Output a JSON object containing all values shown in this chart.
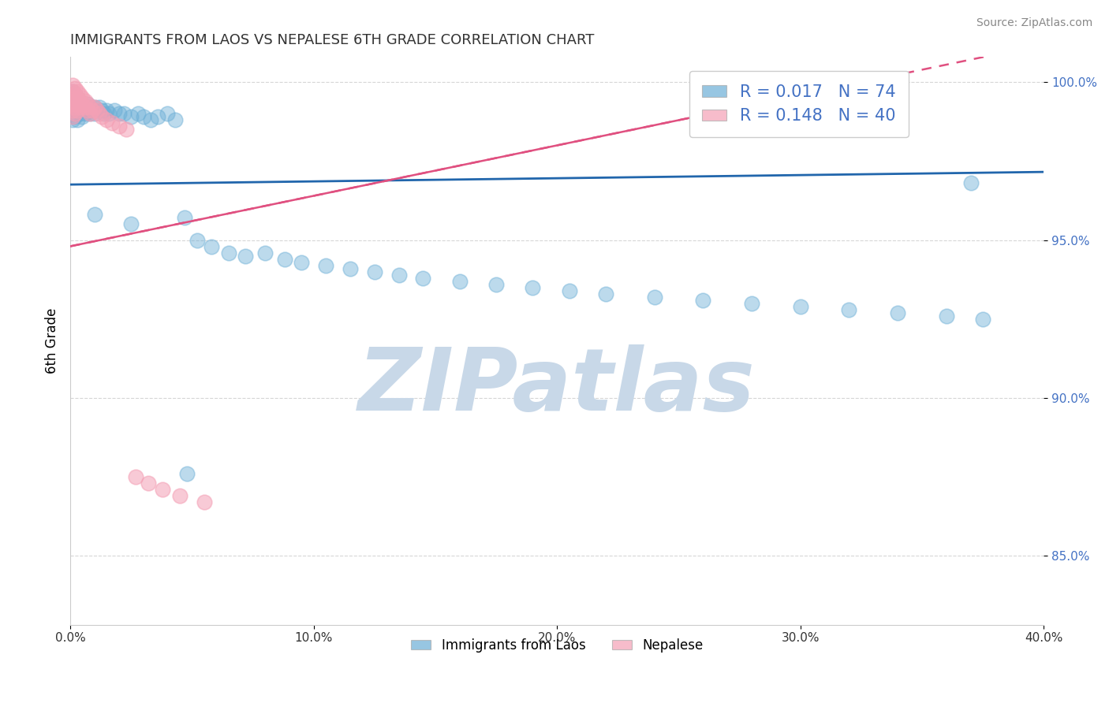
{
  "title": "IMMIGRANTS FROM LAOS VS NEPALESE 6TH GRADE CORRELATION CHART",
  "source_text": "Source: ZipAtlas.com",
  "xlabel_legend_1": "Immigrants from Laos",
  "xlabel_legend_2": "Nepalese",
  "ylabel": "6th Grade",
  "r1": 0.017,
  "n1": 74,
  "r2": 0.148,
  "n2": 40,
  "color1": "#6baed6",
  "color2": "#f4a0b5",
  "trendline1_color": "#2166ac",
  "trendline2_color": "#e05080",
  "xlim": [
    0.0,
    0.4
  ],
  "ylim": [
    0.828,
    1.008
  ],
  "watermark": "ZIPatlas",
  "watermark_color": "#c8d8e8",
  "background_color": "#ffffff",
  "blue_x": [
    0.001,
    0.001,
    0.001,
    0.001,
    0.001,
    0.002,
    0.002,
    0.002,
    0.002,
    0.003,
    0.003,
    0.003,
    0.003,
    0.004,
    0.004,
    0.004,
    0.005,
    0.005,
    0.005,
    0.006,
    0.006,
    0.007,
    0.007,
    0.008,
    0.008,
    0.009,
    0.01,
    0.01,
    0.011,
    0.012,
    0.013,
    0.014,
    0.015,
    0.016,
    0.018,
    0.02,
    0.022,
    0.025,
    0.028,
    0.03,
    0.033,
    0.036,
    0.04,
    0.043,
    0.047,
    0.052,
    0.058,
    0.065,
    0.072,
    0.08,
    0.088,
    0.095,
    0.105,
    0.115,
    0.125,
    0.135,
    0.145,
    0.16,
    0.175,
    0.19,
    0.205,
    0.22,
    0.24,
    0.26,
    0.28,
    0.3,
    0.32,
    0.34,
    0.36,
    0.375,
    0.01,
    0.025,
    0.048,
    0.37
  ],
  "blue_y": [
    0.997,
    0.995,
    0.993,
    0.99,
    0.988,
    0.996,
    0.994,
    0.992,
    0.989,
    0.995,
    0.993,
    0.991,
    0.988,
    0.994,
    0.992,
    0.99,
    0.993,
    0.991,
    0.989,
    0.992,
    0.99,
    0.993,
    0.991,
    0.992,
    0.99,
    0.991,
    0.992,
    0.99,
    0.991,
    0.992,
    0.991,
    0.99,
    0.991,
    0.99,
    0.991,
    0.99,
    0.99,
    0.989,
    0.99,
    0.989,
    0.988,
    0.989,
    0.99,
    0.988,
    0.957,
    0.95,
    0.948,
    0.946,
    0.945,
    0.946,
    0.944,
    0.943,
    0.942,
    0.941,
    0.94,
    0.939,
    0.938,
    0.937,
    0.936,
    0.935,
    0.934,
    0.933,
    0.932,
    0.931,
    0.93,
    0.929,
    0.928,
    0.927,
    0.926,
    0.925,
    0.958,
    0.955,
    0.876,
    0.968
  ],
  "pink_x": [
    0.001,
    0.001,
    0.001,
    0.001,
    0.001,
    0.001,
    0.002,
    0.002,
    0.002,
    0.002,
    0.002,
    0.003,
    0.003,
    0.003,
    0.003,
    0.004,
    0.004,
    0.004,
    0.005,
    0.005,
    0.006,
    0.006,
    0.007,
    0.007,
    0.008,
    0.008,
    0.009,
    0.01,
    0.011,
    0.012,
    0.013,
    0.015,
    0.017,
    0.02,
    0.023,
    0.027,
    0.032,
    0.038,
    0.045,
    0.055
  ],
  "pink_y": [
    0.999,
    0.997,
    0.995,
    0.993,
    0.991,
    0.989,
    0.998,
    0.996,
    0.994,
    0.992,
    0.99,
    0.997,
    0.995,
    0.993,
    0.991,
    0.996,
    0.994,
    0.992,
    0.995,
    0.993,
    0.994,
    0.992,
    0.993,
    0.991,
    0.992,
    0.99,
    0.991,
    0.992,
    0.991,
    0.99,
    0.989,
    0.988,
    0.987,
    0.986,
    0.985,
    0.875,
    0.873,
    0.871,
    0.869,
    0.867
  ]
}
